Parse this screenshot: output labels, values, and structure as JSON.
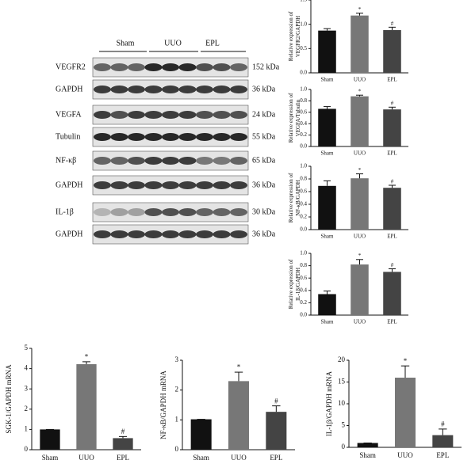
{
  "blot": {
    "groups": [
      "Sham",
      "UUO",
      "EPL"
    ],
    "rows": [
      {
        "label": "VEGFR2",
        "size": "152 kDa"
      },
      {
        "label": "GAPDH",
        "size": "36 kDa"
      },
      {
        "label": "VEGFA",
        "size": "24 kDa"
      },
      {
        "label": "Tubulin",
        "size": "55 kDa"
      },
      {
        "label": "NF-κβ",
        "size": "65 kDa"
      },
      {
        "label": "GAPDH",
        "size": "36 kDa"
      },
      {
        "label": "IL-1β",
        "size": "30 kDa"
      },
      {
        "label": "GAPDH",
        "size": "36 kDa"
      }
    ]
  },
  "chart_data": [
    {
      "type": "bar",
      "ylabel": [
        "Relative expression of",
        "VEGFR2/GAPDH"
      ],
      "categories": [
        "Sham",
        "UUO",
        "EPL"
      ],
      "values": [
        0.87,
        1.18,
        0.88
      ],
      "errors": [
        0.04,
        0.05,
        0.06
      ],
      "annotations": [
        null,
        "*",
        "#"
      ],
      "colors": [
        "#111111",
        "#777777",
        "#444444"
      ],
      "ylim": [
        0,
        1.5
      ],
      "yticks": [
        {
          "value": 0,
          "label": "0.0"
        },
        0.5,
        {
          "value": 1,
          "label": "1.0"
        },
        1.5
      ]
    },
    {
      "type": "bar",
      "ylabel": [
        "Relative expression of",
        "VEGFA/Tubulin"
      ],
      "categories": [
        "Sham",
        "UUO",
        "EPL"
      ],
      "values": [
        0.66,
        0.88,
        0.65
      ],
      "errors": [
        0.04,
        0.02,
        0.04
      ],
      "annotations": [
        null,
        "*",
        "#"
      ],
      "colors": [
        "#111111",
        "#777777",
        "#444444"
      ],
      "ylim": [
        0,
        1
      ],
      "yticks": [
        {
          "value": 0,
          "label": "0.0"
        },
        0.2,
        0.4,
        0.6,
        0.8,
        {
          "value": 1,
          "label": "1.0"
        }
      ]
    },
    {
      "type": "bar",
      "ylabel": [
        "Relative expression of",
        "NF-κB/GAPDH"
      ],
      "categories": [
        "Sham",
        "UUO",
        "EPL"
      ],
      "values": [
        0.69,
        0.81,
        0.66
      ],
      "errors": [
        0.08,
        0.07,
        0.04
      ],
      "annotations": [
        null,
        "*",
        "#"
      ],
      "colors": [
        "#111111",
        "#777777",
        "#444444"
      ],
      "ylim": [
        0,
        1
      ],
      "yticks": [
        {
          "value": 0,
          "label": "0.0"
        },
        0.2,
        0.4,
        0.6,
        0.8,
        {
          "value": 1,
          "label": "1.0"
        }
      ]
    },
    {
      "type": "bar",
      "ylabel": [
        "Relative expression of",
        "IL-1β/GAPDH"
      ],
      "categories": [
        "Sham",
        "UUO",
        "EPL"
      ],
      "values": [
        0.34,
        0.82,
        0.7
      ],
      "errors": [
        0.05,
        0.08,
        0.05
      ],
      "annotations": [
        null,
        "*",
        "#"
      ],
      "colors": [
        "#111111",
        "#777777",
        "#444444"
      ],
      "ylim": [
        0,
        1
      ],
      "yticks": [
        {
          "value": 0,
          "label": "0.0"
        },
        0.2,
        0.4,
        0.6,
        0.8,
        {
          "value": 1,
          "label": "1.0"
        }
      ]
    },
    {
      "type": "bar",
      "ylabel": [
        "SGK-1/GAPDH mRNA"
      ],
      "categories": [
        "Sham",
        "UUO",
        "EPL"
      ],
      "values": [
        1.0,
        4.22,
        0.57
      ],
      "errors": [
        0,
        0.12,
        0.08
      ],
      "annotations": [
        null,
        "*",
        "#"
      ],
      "colors": [
        "#111111",
        "#777777",
        "#444444"
      ],
      "ylim": [
        0,
        5
      ],
      "yticks": [
        0,
        1,
        2,
        3,
        4,
        5
      ]
    },
    {
      "type": "bar",
      "ylabel": [
        "NF-κB/GAPDH mRNA"
      ],
      "categories": [
        "Sham",
        "UUO",
        "EPL"
      ],
      "values": [
        1.02,
        2.3,
        1.27
      ],
      "errors": [
        0,
        0.3,
        0.2
      ],
      "annotations": [
        null,
        "*",
        "#"
      ],
      "colors": [
        "#111111",
        "#777777",
        "#444444"
      ],
      "ylim": [
        0,
        3
      ],
      "yticks": [
        0,
        1,
        2,
        3
      ]
    },
    {
      "type": "bar",
      "ylabel": [
        "IL-1β/GAPDH mRNA"
      ],
      "categories": [
        "Sham",
        "UUO",
        "EPL"
      ],
      "values": [
        1.0,
        16.0,
        2.8
      ],
      "errors": [
        0,
        2.7,
        1.4
      ],
      "annotations": [
        null,
        "*",
        "#"
      ],
      "colors": [
        "#111111",
        "#777777",
        "#444444"
      ],
      "ylim": [
        0,
        20
      ],
      "yticks": [
        0,
        5,
        10,
        15,
        20
      ]
    }
  ]
}
